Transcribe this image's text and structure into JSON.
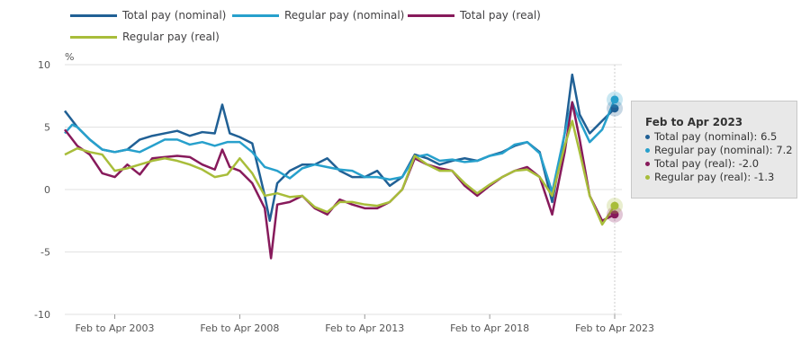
{
  "chart_data": {
    "type": "line",
    "title": "",
    "ylabel": "%",
    "xlabel": "",
    "ylim": [
      -10,
      10
    ],
    "yticks": [
      "10",
      "5",
      "0",
      "-5",
      "-10"
    ],
    "ytick_values": [
      10,
      5,
      0,
      -5,
      -10
    ],
    "xlim": [
      2001,
      2023
    ],
    "xticks": [
      {
        "label": "Feb to Apr 2003",
        "x": 2003
      },
      {
        "label": "Feb to Apr 2008",
        "x": 2008
      },
      {
        "label": "Feb to Apr 2013",
        "x": 2013
      },
      {
        "label": "Feb to Apr 2018",
        "x": 2018
      },
      {
        "label": "Feb to Apr 2023",
        "x": 2023
      }
    ],
    "grid": true,
    "legend_position": "top",
    "series": [
      {
        "name": "Total pay (nominal)",
        "color": "#206095",
        "points": [
          [
            2001,
            6.3
          ],
          [
            2001.5,
            5
          ],
          [
            2002,
            4
          ],
          [
            2002.5,
            3.2
          ],
          [
            2003,
            3
          ],
          [
            2003.5,
            3.2
          ],
          [
            2004,
            4
          ],
          [
            2004.5,
            4.3
          ],
          [
            2005,
            4.5
          ],
          [
            2005.5,
            4.7
          ],
          [
            2006,
            4.3
          ],
          [
            2006.5,
            4.6
          ],
          [
            2007,
            4.5
          ],
          [
            2007.3,
            6.8
          ],
          [
            2007.6,
            4.5
          ],
          [
            2008,
            4.2
          ],
          [
            2008.5,
            3.7
          ],
          [
            2009,
            -0.5
          ],
          [
            2009.2,
            -2.5
          ],
          [
            2009.5,
            0.5
          ],
          [
            2010,
            1.5
          ],
          [
            2010.5,
            2
          ],
          [
            2011,
            2
          ],
          [
            2011.5,
            2.5
          ],
          [
            2012,
            1.5
          ],
          [
            2012.5,
            1
          ],
          [
            2013,
            1
          ],
          [
            2013.5,
            1.5
          ],
          [
            2014,
            0.3
          ],
          [
            2014.5,
            1
          ],
          [
            2015,
            2.8
          ],
          [
            2015.5,
            2.5
          ],
          [
            2016,
            2
          ],
          [
            2016.5,
            2.3
          ],
          [
            2017,
            2.5
          ],
          [
            2017.5,
            2.3
          ],
          [
            2018,
            2.7
          ],
          [
            2018.5,
            3
          ],
          [
            2019,
            3.5
          ],
          [
            2019.5,
            3.8
          ],
          [
            2020,
            3
          ],
          [
            2020.5,
            -1
          ],
          [
            2021,
            4.5
          ],
          [
            2021.3,
            9.2
          ],
          [
            2021.6,
            6
          ],
          [
            2022,
            4.5
          ],
          [
            2022.5,
            5.5
          ],
          [
            2023,
            6.5
          ]
        ]
      },
      {
        "name": "Regular pay (nominal)",
        "color": "#27a0cc",
        "points": [
          [
            2001,
            4.5
          ],
          [
            2001.3,
            5.2
          ],
          [
            2001.5,
            5
          ],
          [
            2002,
            4
          ],
          [
            2002.5,
            3.2
          ],
          [
            2003,
            3
          ],
          [
            2003.5,
            3.2
          ],
          [
            2004,
            3
          ],
          [
            2004.5,
            3.5
          ],
          [
            2005,
            4
          ],
          [
            2005.5,
            4
          ],
          [
            2006,
            3.6
          ],
          [
            2006.5,
            3.8
          ],
          [
            2007,
            3.5
          ],
          [
            2007.5,
            3.8
          ],
          [
            2008,
            3.8
          ],
          [
            2008.5,
            3
          ],
          [
            2009,
            1.8
          ],
          [
            2009.5,
            1.5
          ],
          [
            2010,
            0.9
          ],
          [
            2010.5,
            1.7
          ],
          [
            2011,
            2
          ],
          [
            2011.5,
            1.8
          ],
          [
            2012,
            1.6
          ],
          [
            2012.5,
            1.5
          ],
          [
            2013,
            1
          ],
          [
            2013.5,
            1
          ],
          [
            2014,
            0.8
          ],
          [
            2014.5,
            1
          ],
          [
            2015,
            2.6
          ],
          [
            2015.5,
            2.8
          ],
          [
            2016,
            2.3
          ],
          [
            2016.5,
            2.4
          ],
          [
            2017,
            2.2
          ],
          [
            2017.5,
            2.3
          ],
          [
            2018,
            2.7
          ],
          [
            2018.5,
            2.9
          ],
          [
            2019,
            3.6
          ],
          [
            2019.5,
            3.8
          ],
          [
            2020,
            2.9
          ],
          [
            2020.5,
            -0.2
          ],
          [
            2021,
            4.5
          ],
          [
            2021.3,
            7
          ],
          [
            2021.6,
            5.5
          ],
          [
            2022,
            3.8
          ],
          [
            2022.5,
            4.8
          ],
          [
            2023,
            7.2
          ]
        ]
      },
      {
        "name": "Total pay (real)",
        "color": "#871a5b",
        "points": [
          [
            2001,
            4.8
          ],
          [
            2001.5,
            3.5
          ],
          [
            2002,
            2.8
          ],
          [
            2002.5,
            1.3
          ],
          [
            2003,
            1
          ],
          [
            2003.5,
            2
          ],
          [
            2004,
            1.2
          ],
          [
            2004.5,
            2.5
          ],
          [
            2005,
            2.6
          ],
          [
            2005.5,
            2.7
          ],
          [
            2006,
            2.6
          ],
          [
            2006.5,
            2
          ],
          [
            2007,
            1.6
          ],
          [
            2007.3,
            3.2
          ],
          [
            2007.6,
            1.8
          ],
          [
            2008,
            1.5
          ],
          [
            2008.5,
            0.5
          ],
          [
            2009,
            -1.5
          ],
          [
            2009.25,
            -5.5
          ],
          [
            2009.5,
            -1.2
          ],
          [
            2010,
            -1
          ],
          [
            2010.5,
            -0.5
          ],
          [
            2011,
            -1.5
          ],
          [
            2011.5,
            -2
          ],
          [
            2012,
            -0.8
          ],
          [
            2012.5,
            -1.2
          ],
          [
            2013,
            -1.5
          ],
          [
            2013.5,
            -1.5
          ],
          [
            2014,
            -1
          ],
          [
            2014.5,
            0
          ],
          [
            2015,
            2.5
          ],
          [
            2015.5,
            2
          ],
          [
            2016,
            1.7
          ],
          [
            2016.5,
            1.5
          ],
          [
            2017,
            0.3
          ],
          [
            2017.5,
            -0.5
          ],
          [
            2018,
            0.3
          ],
          [
            2018.5,
            1
          ],
          [
            2019,
            1.5
          ],
          [
            2019.5,
            1.8
          ],
          [
            2020,
            1
          ],
          [
            2020.5,
            -2
          ],
          [
            2021,
            3
          ],
          [
            2021.3,
            7
          ],
          [
            2021.6,
            4
          ],
          [
            2022,
            -0.5
          ],
          [
            2022.5,
            -2.5
          ],
          [
            2023,
            -2
          ]
        ]
      },
      {
        "name": "Regular pay (real)",
        "color": "#a8bd3a",
        "points": [
          [
            2001,
            2.8
          ],
          [
            2001.5,
            3.3
          ],
          [
            2002,
            3
          ],
          [
            2002.5,
            2.8
          ],
          [
            2003,
            1.5
          ],
          [
            2003.5,
            1.7
          ],
          [
            2004,
            2
          ],
          [
            2004.5,
            2.3
          ],
          [
            2005,
            2.5
          ],
          [
            2005.5,
            2.3
          ],
          [
            2006,
            2
          ],
          [
            2006.5,
            1.6
          ],
          [
            2007,
            1
          ],
          [
            2007.5,
            1.2
          ],
          [
            2008,
            2.5
          ],
          [
            2008.5,
            1.3
          ],
          [
            2009,
            -0.5
          ],
          [
            2009.5,
            -0.3
          ],
          [
            2010,
            -0.6
          ],
          [
            2010.5,
            -0.5
          ],
          [
            2011,
            -1.4
          ],
          [
            2011.5,
            -1.8
          ],
          [
            2012,
            -1
          ],
          [
            2012.5,
            -1
          ],
          [
            2013,
            -1.2
          ],
          [
            2013.5,
            -1.3
          ],
          [
            2014,
            -1
          ],
          [
            2014.5,
            0
          ],
          [
            2015,
            2.7
          ],
          [
            2015.5,
            2
          ],
          [
            2016,
            1.5
          ],
          [
            2016.5,
            1.5
          ],
          [
            2017,
            0.5
          ],
          [
            2017.5,
            -0.3
          ],
          [
            2018,
            0.4
          ],
          [
            2018.5,
            1
          ],
          [
            2019,
            1.5
          ],
          [
            2019.5,
            1.6
          ],
          [
            2020,
            1
          ],
          [
            2020.5,
            -0.5
          ],
          [
            2021,
            3.5
          ],
          [
            2021.3,
            5.5
          ],
          [
            2021.6,
            3
          ],
          [
            2022,
            -0.5
          ],
          [
            2022.5,
            -2.8
          ],
          [
            2023,
            -1.3
          ]
        ]
      }
    ]
  },
  "tooltip": {
    "title": "Feb to Apr 2023",
    "rows": [
      "Total pay (nominal): 6.5",
      "Regular pay (nominal): 7.2",
      "Total pay (real): -2.0",
      "Regular pay (real): -1.3"
    ]
  }
}
